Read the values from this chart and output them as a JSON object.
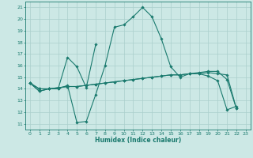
{
  "xlabel": "Humidex (Indice chaleur)",
  "ylabel": "",
  "xlim": [
    -0.5,
    23.5
  ],
  "ylim": [
    10.5,
    21.5
  ],
  "yticks": [
    11,
    12,
    13,
    14,
    15,
    16,
    17,
    18,
    19,
    20,
    21
  ],
  "xticks": [
    0,
    1,
    2,
    3,
    4,
    5,
    6,
    7,
    8,
    9,
    10,
    11,
    12,
    13,
    14,
    15,
    16,
    17,
    18,
    19,
    20,
    21,
    22,
    23
  ],
  "background_color": "#cce8e5",
  "grid_color": "#aacfcc",
  "line_color": "#1a7a6e",
  "series": [
    [
      14.5,
      13.8,
      14.0,
      14.0,
      14.3,
      11.1,
      11.2,
      13.5,
      16.0,
      19.3,
      19.5,
      20.2,
      21.0,
      20.2,
      18.3,
      15.9,
      15.0,
      15.3,
      15.3,
      15.1,
      14.7,
      12.2,
      12.5,
      null
    ],
    [
      14.5,
      13.8,
      14.0,
      14.0,
      16.7,
      15.9,
      14.1,
      17.8,
      null,
      null,
      null,
      null,
      null,
      null,
      null,
      null,
      null,
      null,
      null,
      null,
      null,
      null,
      null,
      null
    ],
    [
      14.5,
      14.0,
      14.0,
      14.1,
      14.2,
      14.2,
      14.3,
      14.4,
      14.5,
      14.6,
      14.7,
      14.8,
      14.9,
      15.0,
      15.1,
      15.2,
      15.2,
      15.3,
      15.3,
      15.4,
      15.3,
      15.2,
      12.3,
      null
    ],
    [
      14.5,
      14.0,
      14.0,
      14.1,
      14.2,
      14.2,
      14.3,
      14.4,
      14.5,
      14.6,
      14.7,
      14.8,
      14.9,
      15.0,
      15.1,
      15.2,
      15.2,
      15.3,
      15.4,
      15.5,
      15.5,
      14.8,
      12.3,
      null
    ]
  ],
  "line_width": 0.8,
  "marker": "D",
  "marker_size": 1.8
}
